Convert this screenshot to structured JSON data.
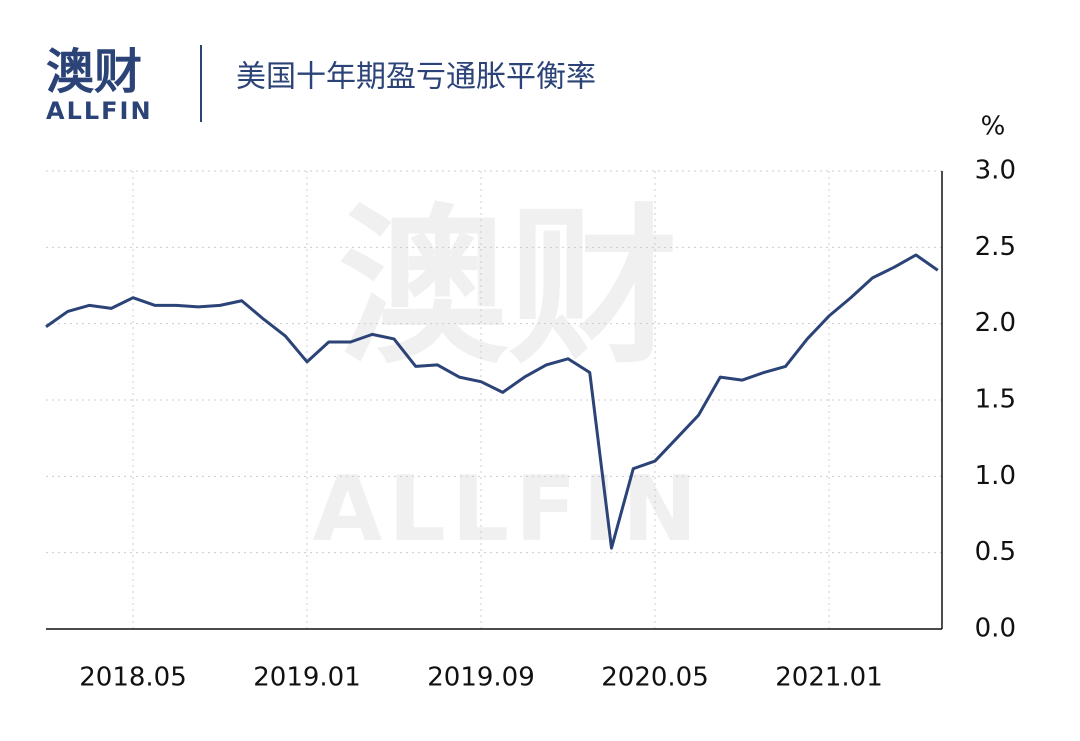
{
  "logo": {
    "cn": "澳财",
    "en": "ALLFIN"
  },
  "chart_data": {
    "type": "line",
    "title": "美国十年期盈亏通胀平衡率",
    "ylabel": "%",
    "categories": [
      null,
      null,
      null,
      null,
      "2018.05",
      null,
      null,
      null,
      null,
      null,
      null,
      null,
      "2019.01",
      null,
      null,
      null,
      null,
      null,
      null,
      null,
      "2019.09",
      null,
      null,
      null,
      null,
      null,
      null,
      null,
      "2020.05",
      null,
      null,
      null,
      null,
      null,
      null,
      null,
      "2021.01",
      null,
      null,
      null,
      null,
      null
    ],
    "series": [
      {
        "name": "美国十年期盈亏通胀平衡率",
        "color": "#2b4377",
        "values": [
          1.98,
          2.08,
          2.12,
          2.1,
          2.17,
          2.12,
          2.12,
          2.11,
          2.12,
          2.15,
          2.03,
          1.92,
          1.75,
          1.88,
          1.88,
          1.93,
          1.9,
          1.72,
          1.73,
          1.65,
          1.62,
          1.55,
          1.65,
          1.73,
          1.77,
          1.68,
          0.53,
          1.05,
          1.1,
          1.25,
          1.4,
          1.65,
          1.63,
          1.68,
          1.72,
          1.9,
          2.05,
          2.17,
          2.3,
          2.37,
          2.45,
          2.35
        ]
      }
    ],
    "ylim": [
      0,
      3
    ],
    "yticks": [
      {
        "value": 0,
        "label": "0.0"
      },
      0.5,
      {
        "value": 1,
        "label": "1.0"
      },
      1.5,
      {
        "value": 2,
        "label": "2.0"
      },
      2.5,
      {
        "value": 3,
        "label": "3.0"
      }
    ],
    "grid": true
  }
}
